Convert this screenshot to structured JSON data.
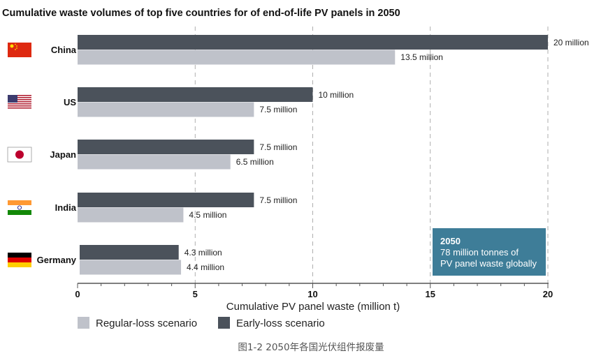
{
  "chart_data": {
    "type": "bar",
    "orientation": "horizontal",
    "title": "Cumulative waste volumes of top five countries for of end-of-life PV panels in 2050",
    "categories": [
      "China",
      "US",
      "Japan",
      "India",
      "Germany"
    ],
    "series": [
      {
        "name": "Early-loss scenario",
        "color": "#4b525b",
        "values": [
          20,
          10,
          7.5,
          7.5,
          4.3
        ],
        "labels": [
          "20 million",
          "10 million",
          "7.5 million",
          "7.5 million",
          "4.3 million"
        ]
      },
      {
        "name": "Regular-loss scenario",
        "color": "#bfc2ca",
        "values": [
          13.5,
          7.5,
          6.5,
          4.5,
          4.4
        ],
        "labels": [
          "13.5 million",
          "7.5 million",
          "6.5 million",
          "4.5 million",
          "4.4 million"
        ]
      }
    ],
    "xlabel": "Cumulative PV panel waste (million t)",
    "ylabel": "",
    "xlim": [
      0,
      20
    ],
    "xticks": [
      "0",
      "5",
      "10",
      "15",
      "20"
    ],
    "grid": "dashed vertical at major ticks",
    "legend": {
      "placement": "bottom-left",
      "order": [
        "Regular-loss scenario",
        "Early-loss scenario"
      ]
    },
    "annotation": {
      "title": "2050",
      "lines": [
        "78 million tonnes of",
        "PV panel waste globally"
      ],
      "color": "#3e7d98"
    }
  },
  "flags": [
    {
      "country": "China",
      "icon": "china-flag-icon"
    },
    {
      "country": "US",
      "icon": "us-flag-icon"
    },
    {
      "country": "Japan",
      "icon": "japan-flag-icon"
    },
    {
      "country": "India",
      "icon": "india-flag-icon"
    },
    {
      "country": "Germany",
      "icon": "germany-flag-icon"
    }
  ],
  "caption": "图1-2  2050年各国光伏组件报废量"
}
